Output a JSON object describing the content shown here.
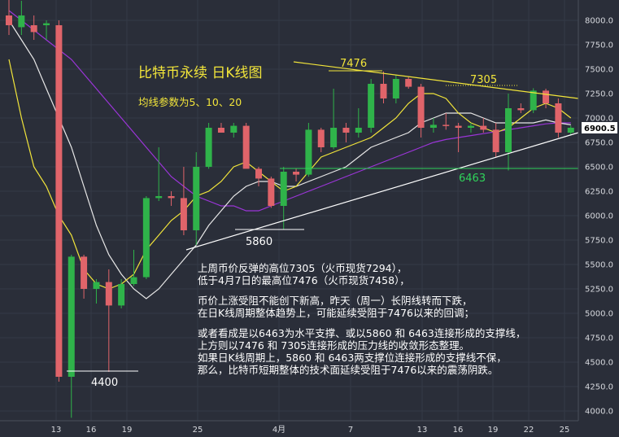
{
  "chart_data": {
    "type": "candlestick",
    "title": "比特币永续 日K线图",
    "subtitle": "均线参数为5、10、20",
    "y_ticks": [
      "8000.0",
      "7750.0",
      "7500.0",
      "7250.0",
      "7000.0",
      "6750.0",
      "6500.0",
      "6250.0",
      "6000.0",
      "5750.0",
      "5500.0",
      "5250.0",
      "5000.0",
      "4750.0",
      "4500.0",
      "4250.0",
      "4000.0"
    ],
    "ylim": [
      3930,
      8100
    ],
    "x_ticks": [
      "13",
      "16",
      "19",
      "25",
      "4月",
      "7",
      "13",
      "16",
      "19",
      "22",
      "25"
    ],
    "current_price": "6900.5",
    "colors": {
      "up": "#2fb34a",
      "down": "#e0646a",
      "ma5": "#f2e53a",
      "ma10": "#e8e8e8",
      "ma20": "#9b35d8",
      "bg": "#2a2e39",
      "grid": "#343a46"
    },
    "candles": [
      {
        "o": 8050,
        "h": 8300,
        "l": 7850,
        "c": 7950
      },
      {
        "o": 7930,
        "h": 8200,
        "l": 7850,
        "c": 8050
      },
      {
        "o": 7950,
        "h": 8050,
        "l": 7800,
        "c": 7880
      },
      {
        "o": 7950,
        "h": 8000,
        "l": 7800,
        "c": 7970
      },
      {
        "o": 7950,
        "h": 8000,
        "l": 4300,
        "c": 4350
      },
      {
        "o": 4350,
        "h": 5600,
        "l": 3930,
        "c": 5580
      },
      {
        "o": 5580,
        "h": 5600,
        "l": 5150,
        "c": 5250
      },
      {
        "o": 5250,
        "h": 5350,
        "l": 5100,
        "c": 5320
      },
      {
        "o": 5320,
        "h": 5450,
        "l": 4400,
        "c": 5080
      },
      {
        "o": 5080,
        "h": 5350,
        "l": 5050,
        "c": 5300
      },
      {
        "o": 5300,
        "h": 5650,
        "l": 5280,
        "c": 5370
      },
      {
        "o": 5370,
        "h": 6200,
        "l": 5350,
        "c": 6180
      },
      {
        "o": 6180,
        "h": 6700,
        "l": 6150,
        "c": 6200
      },
      {
        "o": 6200,
        "h": 6250,
        "l": 6100,
        "c": 6180
      },
      {
        "o": 6180,
        "h": 6500,
        "l": 5800,
        "c": 5850
      },
      {
        "o": 5850,
        "h": 6650,
        "l": 5700,
        "c": 6500
      },
      {
        "o": 6500,
        "h": 6950,
        "l": 6480,
        "c": 6900
      },
      {
        "o": 6900,
        "h": 6950,
        "l": 6850,
        "c": 6850
      },
      {
        "o": 6850,
        "h": 6950,
        "l": 6800,
        "c": 6920
      },
      {
        "o": 6920,
        "h": 6950,
        "l": 6500,
        "c": 6480
      },
      {
        "o": 6480,
        "h": 6500,
        "l": 6300,
        "c": 6380
      },
      {
        "o": 6380,
        "h": 6400,
        "l": 6080,
        "c": 6100
      },
      {
        "o": 6100,
        "h": 6500,
        "l": 5860,
        "c": 6450
      },
      {
        "o": 6450,
        "h": 6480,
        "l": 6350,
        "c": 6420
      },
      {
        "o": 6420,
        "h": 6950,
        "l": 6400,
        "c": 6880
      },
      {
        "o": 6880,
        "h": 6900,
        "l": 6650,
        "c": 6700
      },
      {
        "o": 6700,
        "h": 7300,
        "l": 6680,
        "c": 6900
      },
      {
        "o": 6900,
        "h": 6950,
        "l": 6750,
        "c": 6850
      },
      {
        "o": 6850,
        "h": 7100,
        "l": 6800,
        "c": 6900
      },
      {
        "o": 6900,
        "h": 7400,
        "l": 6850,
        "c": 7350
      },
      {
        "o": 7350,
        "h": 7476,
        "l": 7150,
        "c": 7200
      },
      {
        "o": 7200,
        "h": 7440,
        "l": 7150,
        "c": 7400
      },
      {
        "o": 7400,
        "h": 7420,
        "l": 7300,
        "c": 7320
      },
      {
        "o": 7320,
        "h": 7350,
        "l": 6800,
        "c": 6900
      },
      {
        "o": 6900,
        "h": 7000,
        "l": 6850,
        "c": 6930
      },
      {
        "o": 6930,
        "h": 7050,
        "l": 6880,
        "c": 6920
      },
      {
        "o": 6920,
        "h": 6950,
        "l": 6650,
        "c": 6900
      },
      {
        "o": 6900,
        "h": 6950,
        "l": 6850,
        "c": 6920
      },
      {
        "o": 6920,
        "h": 7000,
        "l": 6850,
        "c": 6880
      },
      {
        "o": 6880,
        "h": 6950,
        "l": 6600,
        "c": 6650
      },
      {
        "o": 6650,
        "h": 7250,
        "l": 6463,
        "c": 7100
      },
      {
        "o": 7100,
        "h": 7150,
        "l": 7050,
        "c": 7080
      },
      {
        "o": 7080,
        "h": 7305,
        "l": 7050,
        "c": 7280
      },
      {
        "o": 7280,
        "h": 7300,
        "l": 7100,
        "c": 7150
      },
      {
        "o": 7150,
        "h": 7200,
        "l": 6800,
        "c": 6850
      },
      {
        "o": 6850,
        "h": 6920,
        "l": 6820,
        "c": 6900
      }
    ],
    "ma5": [
      7600,
      7000,
      6500,
      6300,
      6000,
      5800,
      5450,
      5300,
      5250,
      5300,
      5400,
      5650,
      5800,
      5950,
      6050,
      6200,
      6250,
      6350,
      6500,
      6550,
      6450,
      6350,
      6250,
      6300,
      6450,
      6600,
      6650,
      6700,
      6750,
      6800,
      6900,
      7000,
      7150,
      7250,
      7250,
      7200,
      7050,
      6950,
      6900,
      6850,
      6900,
      7000,
      7100,
      7150,
      7100,
      7000
    ],
    "ma10": [
      8000,
      7800,
      7600,
      7300,
      7000,
      6700,
      6300,
      5900,
      5600,
      5400,
      5250,
      5150,
      5250,
      5400,
      5550,
      5700,
      5900,
      6050,
      6200,
      6300,
      6350,
      6350,
      6300,
      6300,
      6350,
      6400,
      6450,
      6500,
      6600,
      6700,
      6750,
      6800,
      6850,
      6950,
      7000,
      7050,
      7050,
      7050,
      7000,
      6950,
      6950,
      6950,
      6950,
      6980,
      6950,
      6930
    ],
    "ma20": [
      8100,
      8000,
      7900,
      7800,
      7700,
      7600,
      7450,
      7300,
      7150,
      7000,
      6850,
      6700,
      6550,
      6400,
      6300,
      6200,
      6150,
      6100,
      6100,
      6050,
      6050,
      6100,
      6150,
      6200,
      6250,
      6300,
      6350,
      6400,
      6450,
      6500,
      6550,
      6600,
      6650,
      6700,
      6750,
      6780,
      6800,
      6820,
      6840,
      6860,
      6880,
      6900,
      6920,
      6940,
      6950,
      6950
    ],
    "annotations": {
      "high_7476": "7476",
      "high_7305": "7305",
      "support_6463": "6463",
      "low_5860": "5860",
      "low_4400": "4400"
    },
    "notes": [
      "上周币价反弹的高位7305（火币现货7294），",
      "低于4月7日的最高位7476（火币现货7458），",
      "币价上涨受阻不能创下新高，昨天（周一）长阴线转而下跌，",
      "在日K线周期整体趋势上，可能延续受阻于7476以来的回调；",
      "或者看成是以6463为水平支撑、或以5860 和 6463连接形成的支撑线，",
      "上方则以7476 和 7305连接形成的压力线的收敛形态整理。",
      "如果日K线周期上，5860 和 6463两支撑位连接形成的支撑线不保，",
      "那么，比特币短期整体的技术面延续受阻于7476以来的震荡阴跌。"
    ]
  }
}
